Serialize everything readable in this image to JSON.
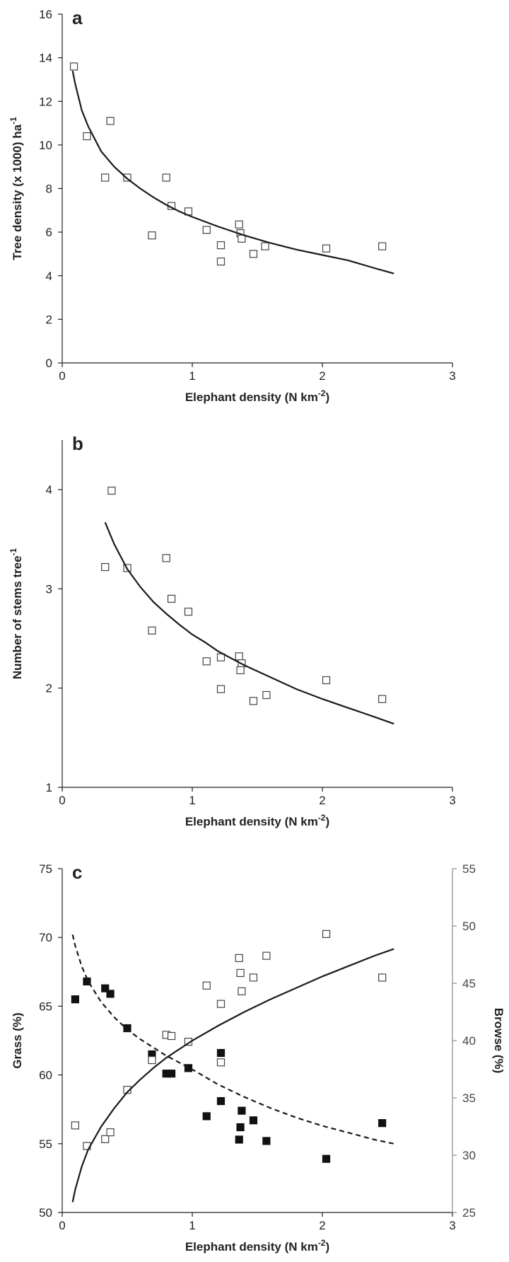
{
  "chart_data": [
    {
      "panel": "a",
      "type": "scatter",
      "xlabel": "Elephant density (N km",
      "xlabel_sup": "-2",
      "xlabel_end": ")",
      "ylabel": "Tree density (x 1000) ha",
      "ylabel_sup": "-1",
      "xlim": [
        0,
        3
      ],
      "ylim": [
        0,
        16
      ],
      "xticks": [
        "0",
        "1",
        "2",
        "3"
      ],
      "yticks": [
        "0",
        "2",
        "4",
        "6",
        "8",
        "10",
        "12",
        "14",
        "16"
      ],
      "grid": false,
      "series": [
        {
          "marker": "open-square",
          "points": [
            [
              0.09,
              13.6
            ],
            [
              0.19,
              10.4
            ],
            [
              0.33,
              8.5
            ],
            [
              0.37,
              11.1
            ],
            [
              0.5,
              8.5
            ],
            [
              0.69,
              5.85
            ],
            [
              0.8,
              8.5
            ],
            [
              0.84,
              7.2
            ],
            [
              0.97,
              6.95
            ],
            [
              1.11,
              6.1
            ],
            [
              1.22,
              5.4
            ],
            [
              1.22,
              4.65
            ],
            [
              1.36,
              6.35
            ],
            [
              1.37,
              5.95
            ],
            [
              1.38,
              5.7
            ],
            [
              1.47,
              5.0
            ],
            [
              1.56,
              5.35
            ],
            [
              2.03,
              5.25
            ],
            [
              2.46,
              5.35
            ]
          ]
        },
        {
          "marker": "solid-line",
          "points": [
            [
              0.08,
              13.4
            ],
            [
              0.1,
              12.8
            ],
            [
              0.15,
              11.6
            ],
            [
              0.2,
              10.85
            ],
            [
              0.3,
              9.7
            ],
            [
              0.4,
              9.0
            ],
            [
              0.5,
              8.45
            ],
            [
              0.6,
              8.0
            ],
            [
              0.7,
              7.6
            ],
            [
              0.8,
              7.25
            ],
            [
              0.9,
              6.95
            ],
            [
              1.0,
              6.7
            ],
            [
              1.2,
              6.25
            ],
            [
              1.4,
              5.85
            ],
            [
              1.6,
              5.5
            ],
            [
              1.8,
              5.2
            ],
            [
              2.0,
              4.95
            ],
            [
              2.2,
              4.7
            ],
            [
              2.4,
              4.35
            ],
            [
              2.55,
              4.1
            ]
          ]
        }
      ]
    },
    {
      "panel": "b",
      "type": "scatter",
      "xlabel": "Elephant density (N km",
      "xlabel_sup": "-2",
      "xlabel_end": ")",
      "ylabel": "Number of stems tree",
      "ylabel_sup": "-1",
      "xlim": [
        0,
        3
      ],
      "ylim": [
        1,
        4.5
      ],
      "xticks": [
        "0",
        "1",
        "2",
        "3"
      ],
      "yticks": [
        "1",
        "2",
        "3",
        "4"
      ],
      "grid": false,
      "series": [
        {
          "marker": "open-square",
          "points": [
            [
              0.33,
              3.22
            ],
            [
              0.38,
              3.99
            ],
            [
              0.5,
              3.21
            ],
            [
              0.69,
              2.58
            ],
            [
              0.8,
              3.31
            ],
            [
              0.84,
              2.9
            ],
            [
              0.97,
              2.77
            ],
            [
              1.11,
              2.27
            ],
            [
              1.22,
              2.31
            ],
            [
              1.22,
              1.99
            ],
            [
              1.36,
              2.32
            ],
            [
              1.38,
              2.25
            ],
            [
              1.37,
              2.18
            ],
            [
              1.47,
              1.87
            ],
            [
              1.57,
              1.93
            ],
            [
              2.03,
              2.08
            ],
            [
              2.46,
              1.89
            ]
          ]
        },
        {
          "marker": "solid-line",
          "points": [
            [
              0.33,
              3.67
            ],
            [
              0.4,
              3.45
            ],
            [
              0.5,
              3.2
            ],
            [
              0.6,
              3.02
            ],
            [
              0.7,
              2.87
            ],
            [
              0.8,
              2.75
            ],
            [
              0.9,
              2.64
            ],
            [
              1.0,
              2.54
            ],
            [
              1.1,
              2.46
            ],
            [
              1.2,
              2.37
            ],
            [
              1.3,
              2.3
            ],
            [
              1.4,
              2.23
            ],
            [
              1.6,
              2.11
            ],
            [
              1.8,
              1.99
            ],
            [
              2.0,
              1.89
            ],
            [
              2.2,
              1.8
            ],
            [
              2.4,
              1.71
            ],
            [
              2.55,
              1.64
            ]
          ]
        }
      ]
    },
    {
      "panel": "c",
      "type": "scatter",
      "xlabel": "Elephant density (N km",
      "xlabel_sup": "-2",
      "xlabel_end": ")",
      "ylabel": "Grass (%)",
      "y2label": "Browse (%)",
      "xlim": [
        0,
        3
      ],
      "ylim": [
        50,
        75
      ],
      "y2lim": [
        25,
        55
      ],
      "xticks": [
        "0",
        "1",
        "2",
        "3"
      ],
      "yticks": [
        "50",
        "55",
        "60",
        "65",
        "70",
        "75"
      ],
      "y2ticks": [
        "25",
        "30",
        "35",
        "40",
        "45",
        "50",
        "55"
      ],
      "grid": false,
      "series": [
        {
          "marker": "filled-square",
          "axis": "left",
          "points": [
            [
              0.1,
              65.5
            ],
            [
              0.19,
              66.8
            ],
            [
              0.33,
              66.3
            ],
            [
              0.37,
              65.9
            ],
            [
              0.5,
              63.4
            ],
            [
              0.69,
              61.5
            ],
            [
              0.8,
              60.1
            ],
            [
              0.84,
              60.1
            ],
            [
              0.97,
              60.5
            ],
            [
              1.11,
              57.0
            ],
            [
              1.22,
              61.6
            ],
            [
              1.22,
              58.1
            ],
            [
              1.36,
              55.3
            ],
            [
              1.37,
              56.2
            ],
            [
              1.38,
              57.4
            ],
            [
              1.47,
              56.7
            ],
            [
              1.57,
              55.2
            ],
            [
              2.03,
              53.9
            ],
            [
              2.46,
              56.5
            ]
          ]
        },
        {
          "marker": "open-square",
          "axis": "right",
          "points": [
            [
              0.1,
              32.6
            ],
            [
              0.19,
              30.8
            ],
            [
              0.33,
              31.4
            ],
            [
              0.37,
              32.0
            ],
            [
              0.5,
              35.7
            ],
            [
              0.69,
              38.3
            ],
            [
              0.8,
              40.5
            ],
            [
              0.84,
              40.4
            ],
            [
              0.97,
              39.9
            ],
            [
              1.11,
              44.8
            ],
            [
              1.22,
              38.1
            ],
            [
              1.22,
              43.2
            ],
            [
              1.36,
              47.2
            ],
            [
              1.37,
              45.9
            ],
            [
              1.38,
              44.3
            ],
            [
              1.47,
              45.5
            ],
            [
              1.57,
              47.4
            ],
            [
              2.03,
              49.3
            ],
            [
              2.46,
              45.5
            ]
          ]
        },
        {
          "marker": "dashed-line",
          "axis": "left",
          "points": [
            [
              0.08,
              70.2
            ],
            [
              0.1,
              69.4
            ],
            [
              0.15,
              67.9
            ],
            [
              0.2,
              66.8
            ],
            [
              0.3,
              65.3
            ],
            [
              0.4,
              64.2
            ],
            [
              0.5,
              63.3
            ],
            [
              0.6,
              62.6
            ],
            [
              0.7,
              62.0
            ],
            [
              0.8,
              61.4
            ],
            [
              1.0,
              60.4
            ],
            [
              1.2,
              59.3
            ],
            [
              1.4,
              58.4
            ],
            [
              1.6,
              57.6
            ],
            [
              1.8,
              56.9
            ],
            [
              2.0,
              56.3
            ],
            [
              2.2,
              55.8
            ],
            [
              2.4,
              55.3
            ],
            [
              2.55,
              55.0
            ]
          ]
        },
        {
          "marker": "solid-line",
          "axis": "right",
          "points": [
            [
              0.08,
              25.9
            ],
            [
              0.1,
              27.0
            ],
            [
              0.15,
              29.0
            ],
            [
              0.2,
              30.5
            ],
            [
              0.3,
              32.5
            ],
            [
              0.4,
              34.1
            ],
            [
              0.5,
              35.5
            ],
            [
              0.6,
              36.6
            ],
            [
              0.7,
              37.6
            ],
            [
              0.8,
              38.5
            ],
            [
              1.0,
              40.0
            ],
            [
              1.2,
              41.3
            ],
            [
              1.4,
              42.5
            ],
            [
              1.6,
              43.6
            ],
            [
              1.8,
              44.6
            ],
            [
              2.0,
              45.6
            ],
            [
              2.2,
              46.5
            ],
            [
              2.4,
              47.4
            ],
            [
              2.55,
              48.0
            ]
          ]
        }
      ]
    }
  ]
}
